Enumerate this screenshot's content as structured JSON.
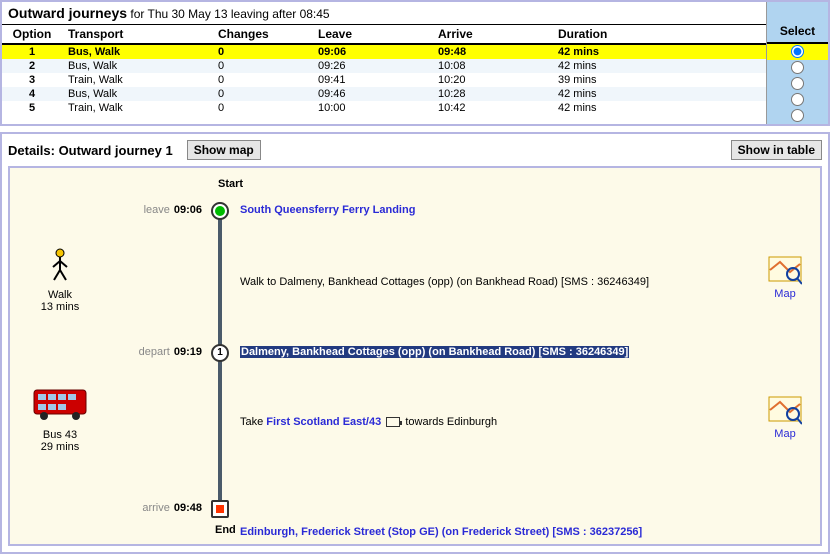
{
  "header": {
    "title_bold": "Outward journeys",
    "title_rest": " for Thu 30 May 13 leaving after 08:45"
  },
  "columns": {
    "option": "Option",
    "transport": "Transport",
    "changes": "Changes",
    "leave": "Leave",
    "arrive": "Arrive",
    "duration": "Duration",
    "select": "Select"
  },
  "rows": [
    {
      "option": "1",
      "transport": "Bus, Walk",
      "changes": "0",
      "leave": "09:06",
      "arrive": "09:48",
      "duration": "42 mins",
      "selected": true
    },
    {
      "option": "2",
      "transport": "Bus, Walk",
      "changes": "0",
      "leave": "09:26",
      "arrive": "10:08",
      "duration": "42 mins",
      "selected": false
    },
    {
      "option": "3",
      "transport": "Train, Walk",
      "changes": "0",
      "leave": "09:41",
      "arrive": "10:20",
      "duration": "39 mins",
      "selected": false
    },
    {
      "option": "4",
      "transport": "Bus, Walk",
      "changes": "0",
      "leave": "09:46",
      "arrive": "10:28",
      "duration": "42 mins",
      "selected": false
    },
    {
      "option": "5",
      "transport": "Train, Walk",
      "changes": "0",
      "leave": "10:00",
      "arrive": "10:42",
      "duration": "42 mins",
      "selected": false
    }
  ],
  "details": {
    "title": "Details: Outward journey 1",
    "show_map_btn": "Show map",
    "show_table_btn": "Show in table",
    "start_label": "Start",
    "end_label": "End",
    "map_label": "Map",
    "legs": {
      "start": {
        "word": "leave",
        "time": "09:06",
        "stop": "South Queensferry Ferry Landing"
      },
      "walk_instr": "Walk to Dalmeny, Bankhead Cottages (opp) (on Bankhead Road) [SMS : 36246349]",
      "walk_mode": {
        "label1": "Walk",
        "label2": "13 mins"
      },
      "mid": {
        "word": "depart",
        "time": "09:19",
        "stop_hl": "Dalmeny, Bankhead Cottages (opp) (on Bankhead Road) [SMS : 36246349]"
      },
      "bus_instr_pre": "Take ",
      "bus_route": "First Scotland East/43",
      "bus_instr_post": " towards Edinburgh",
      "bus_mode": {
        "label1": "Bus 43",
        "label2": "29 mins"
      },
      "end": {
        "word": "arrive",
        "time": "09:48",
        "stop": "Edinburgh, Frederick Street (Stop GE) (on Frederick Street)",
        "sms": " [SMS : 36237256]"
      }
    },
    "step1_num": "1"
  }
}
